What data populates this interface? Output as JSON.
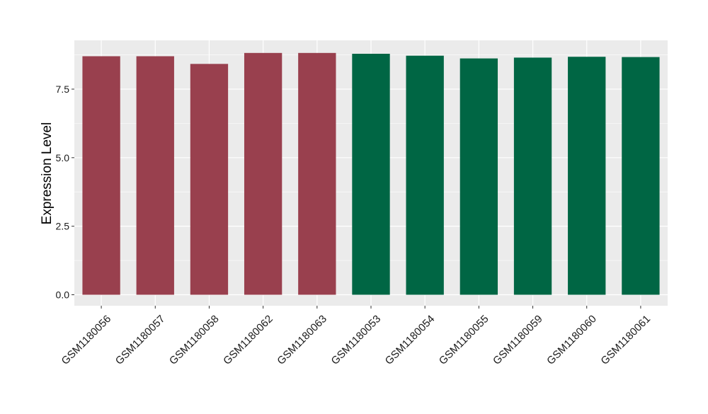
{
  "chart_data": {
    "type": "bar",
    "title": "",
    "xlabel": "",
    "ylabel": "Expression Level",
    "ylim": [
      -0.4,
      9.28
    ],
    "yticks": [
      0.0,
      2.5,
      5.0,
      7.5
    ],
    "ytick_labels": [
      "0.0",
      "2.5",
      "5.0",
      "7.5"
    ],
    "categories": [
      "GSM1180056",
      "GSM1180057",
      "GSM1180058",
      "GSM1180062",
      "GSM1180063",
      "GSM1180053",
      "GSM1180054",
      "GSM1180055",
      "GSM1180059",
      "GSM1180060",
      "GSM1180061"
    ],
    "values": [
      8.7,
      8.7,
      8.42,
      8.82,
      8.82,
      8.79,
      8.72,
      8.62,
      8.65,
      8.68,
      8.67
    ],
    "bar_colors": [
      "#99404E",
      "#99404E",
      "#99404E",
      "#99404E",
      "#99404E",
      "#006644",
      "#006644",
      "#006644",
      "#006644",
      "#006644",
      "#006644"
    ],
    "grid": true,
    "legend": "none",
    "panel_background": "#EBEBEB",
    "grid_color": "#FFFFFF"
  }
}
